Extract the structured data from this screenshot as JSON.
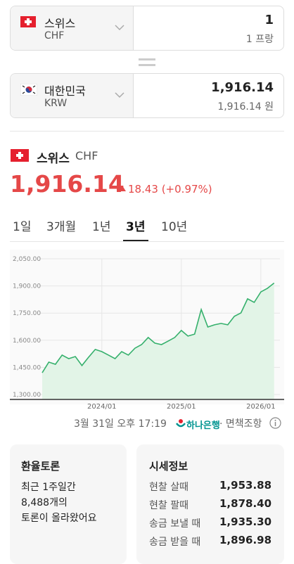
{
  "converter": {
    "from": {
      "country": "스위스",
      "code": "CHF",
      "amount": "1",
      "amount_label": "1 프랑"
    },
    "to": {
      "country": "대한민국",
      "code": "KRW",
      "amount": "1,916.14",
      "amount_label": "1,916.14 원"
    }
  },
  "summary": {
    "country": "스위스",
    "code": "CHF",
    "price": "1,916.14",
    "change": "18.43 (+0.97%)"
  },
  "tabs": {
    "items": [
      "1일",
      "3개월",
      "1년",
      "3년",
      "10년"
    ],
    "selected": 3
  },
  "chart_data": {
    "type": "area",
    "color": "#35b06c",
    "fill": "#e2f4e7",
    "grid": true,
    "x": [
      "2023/04",
      "2023/05",
      "2023/06",
      "2023/07",
      "2023/08",
      "2023/09",
      "2023/10",
      "2023/11",
      "2023/12",
      "2024/01",
      "2024/02",
      "2024/03",
      "2024/04",
      "2024/05",
      "2024/06",
      "2024/07",
      "2024/08",
      "2024/09",
      "2024/10",
      "2024/11",
      "2024/12",
      "2025/01",
      "2025/02",
      "2025/03",
      "2025/04",
      "2025/05",
      "2025/06",
      "2025/07",
      "2025/08",
      "2025/09",
      "2025/10",
      "2025/11",
      "2025/12",
      "2026/01",
      "2026/02",
      "2026/03"
    ],
    "values": [
      1420,
      1479,
      1467,
      1518,
      1498,
      1510,
      1460,
      1506,
      1549,
      1537,
      1518,
      1498,
      1537,
      1518,
      1556,
      1576,
      1615,
      1584,
      1576,
      1595,
      1615,
      1654,
      1623,
      1634,
      1770,
      1673,
      1685,
      1693,
      1685,
      1732,
      1751,
      1829,
      1809,
      1867,
      1887,
      1916
    ],
    "xticks": [
      "2024/01",
      "2025/01",
      "2026/01"
    ],
    "ylim": [
      1300,
      2050
    ],
    "yticks": [
      {
        "value": 1300,
        "label": "1,300.00"
      },
      {
        "value": 1450,
        "label": "1,450.00"
      },
      {
        "value": 1600,
        "label": "1,600.00"
      },
      {
        "value": 1750,
        "label": "1,750.00"
      },
      {
        "value": 1900,
        "label": "1,900.00"
      },
      {
        "value": 2050,
        "label": "2,050.00"
      }
    ]
  },
  "footer": {
    "time": "3월 31일 오후 17:19",
    "bank": "하나은행",
    "disclaimer": "· 면책조항"
  },
  "discussion": {
    "title": "환율토론",
    "lines": [
      "최근 1주일간",
      "8,488개의",
      "토론이 올라왔어요"
    ]
  },
  "quote": {
    "title": "시세정보",
    "rows": [
      [
        "현찰 살때",
        "1,953.88"
      ],
      [
        "현찰 팔때",
        "1,878.40"
      ],
      [
        "송금 보낼 때",
        "1,935.30"
      ],
      [
        "송금 받을 때",
        "1,896.98"
      ]
    ]
  }
}
